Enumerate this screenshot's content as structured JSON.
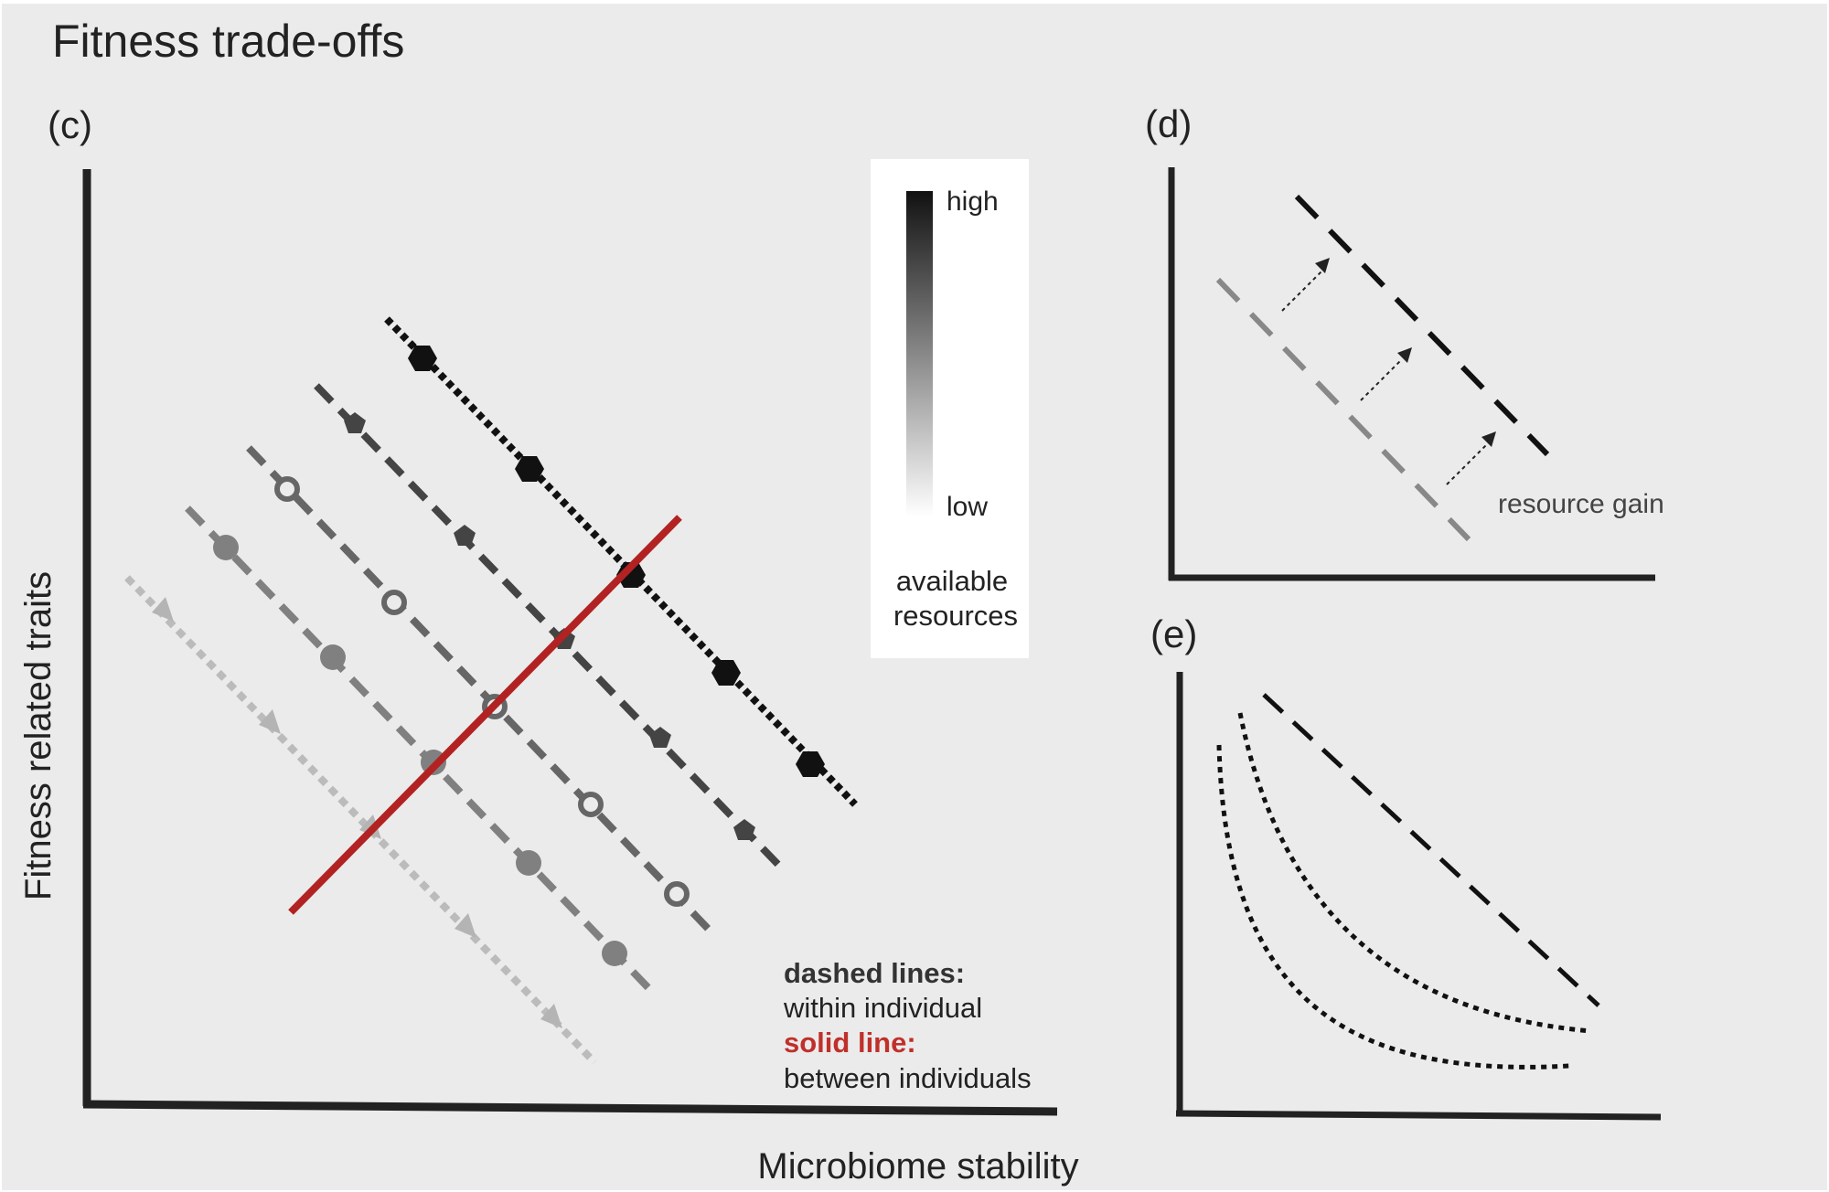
{
  "title": "Fitness trade-offs",
  "panels": {
    "c": {
      "label": "(c)",
      "ylabel": "Fitness related traits",
      "xlabel": "Microbiome stability",
      "resource_legend": {
        "high": "high",
        "low": "low",
        "caption_line1": "available",
        "caption_line2": "resources"
      },
      "note": {
        "dashed_heading": "dashed lines:",
        "dashed_text": "within individual",
        "solid_heading": "solid line:",
        "solid_text": "between individuals"
      }
    },
    "d": {
      "label": "(d)",
      "annotation": "resource gain"
    },
    "e": {
      "label": "(e)"
    }
  },
  "colors": {
    "background": "#ebebeb",
    "axis": "#222222",
    "between_line": "#b22222",
    "dashed_note_heading": "#333333",
    "solid_note_heading": "#c0302b",
    "legend_box": "#ffffff"
  }
}
